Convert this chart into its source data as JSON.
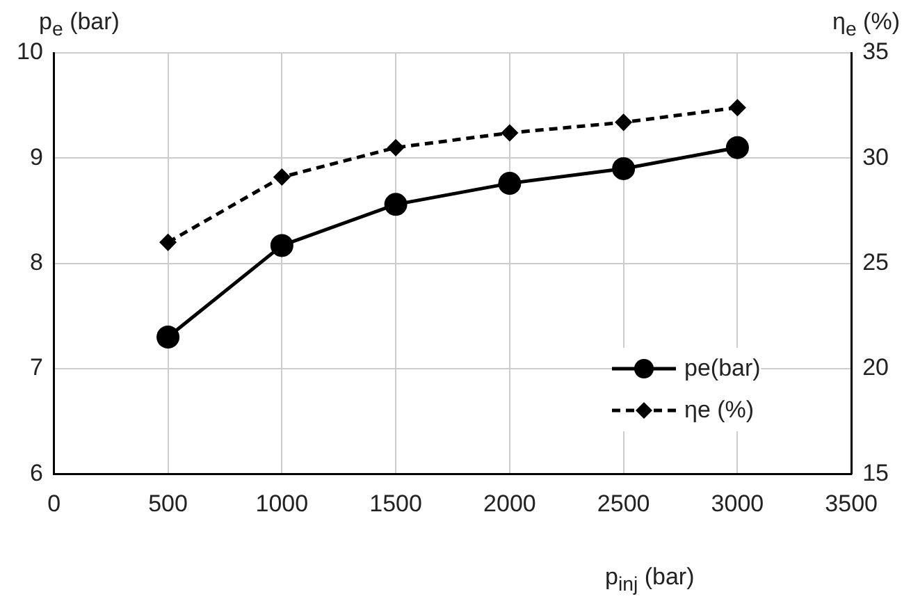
{
  "chart_data": {
    "type": "line",
    "xlabel": "p$_{inj}$ (bar)",
    "ylabel": "p$_{e}$ (bar)",
    "y2label": "η$_{e}$ (%)",
    "x": [
      500,
      1000,
      1500,
      2000,
      2500,
      3000
    ],
    "series": [
      {
        "name": "pe(bar)",
        "color": "#000000",
        "values": [
          7.3,
          8.17,
          8.56,
          8.76,
          8.9,
          9.1
        ],
        "marker": "circle",
        "line_style": "solid"
      },
      {
        "name": "ηe (%)",
        "color": "#000000",
        "values": [
          26.0,
          29.1,
          30.5,
          31.2,
          31.7,
          32.4
        ],
        "axis": "y2",
        "marker": "diamond",
        "line_style": "dashed"
      }
    ],
    "xlim": [
      0,
      3500
    ],
    "xticks": [
      0,
      500,
      1000,
      1500,
      2000,
      2500,
      3000,
      3500
    ],
    "ylim": [
      6,
      10
    ],
    "yticks": [
      6,
      7,
      8,
      9,
      10
    ],
    "y2lim": [
      15,
      35
    ],
    "y2ticks": [
      15,
      20,
      25,
      30,
      35
    ],
    "grid": true,
    "legend": "bottom right"
  }
}
